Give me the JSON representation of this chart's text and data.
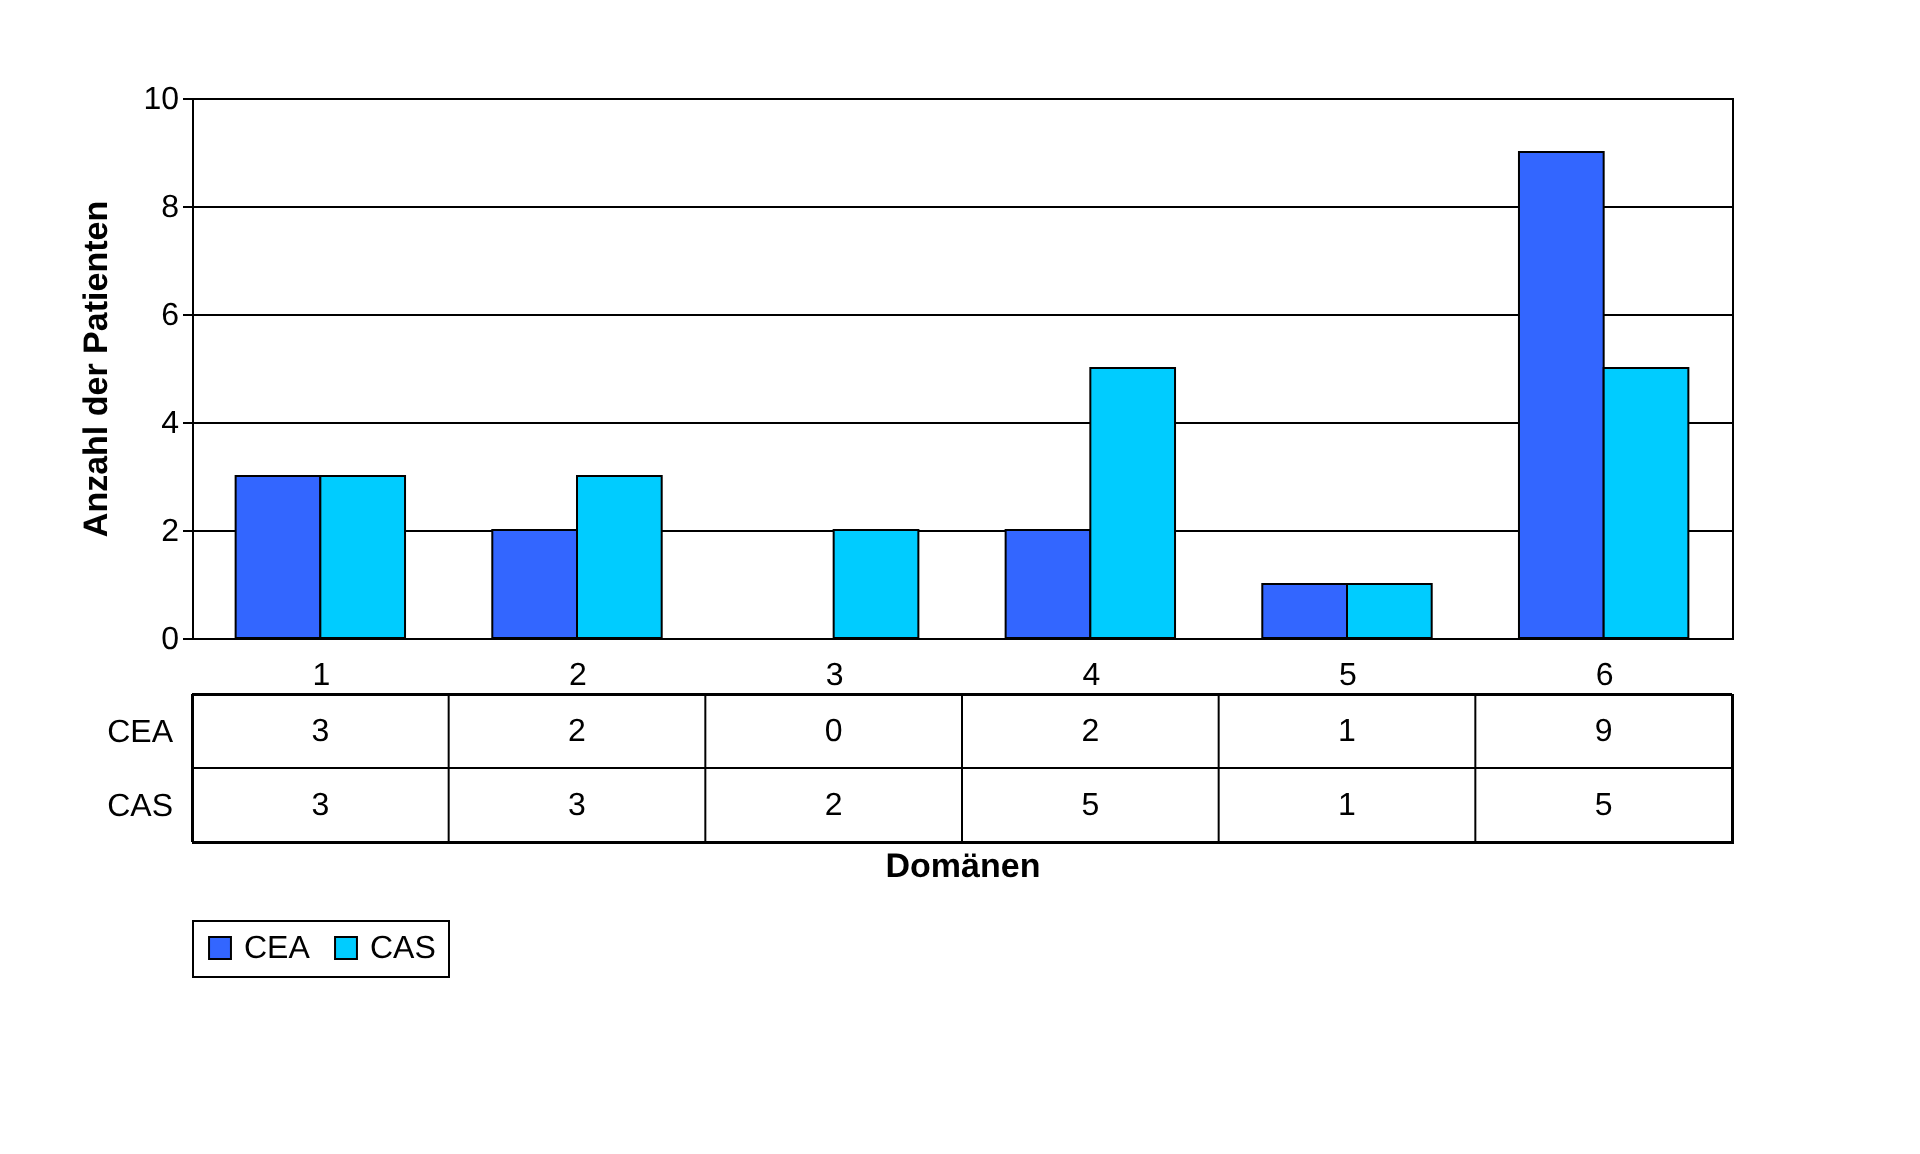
{
  "chart_data": {
    "type": "bar",
    "xlabel": "Domänen",
    "ylabel": "Anzahl der Patienten",
    "categories": [
      "1",
      "2",
      "3",
      "4",
      "5",
      "6"
    ],
    "series": [
      {
        "name": "CEA",
        "color": "#3366ff",
        "values": [
          3,
          2,
          0,
          2,
          1,
          9
        ]
      },
      {
        "name": "CAS",
        "color": "#00ccff",
        "values": [
          3,
          3,
          2,
          5,
          1,
          5
        ]
      }
    ],
    "ylim": [
      0,
      10
    ],
    "yticks": [
      0,
      2,
      4,
      6,
      8,
      10
    ],
    "grid": "y",
    "legend": "bottom",
    "data_labels": true
  }
}
